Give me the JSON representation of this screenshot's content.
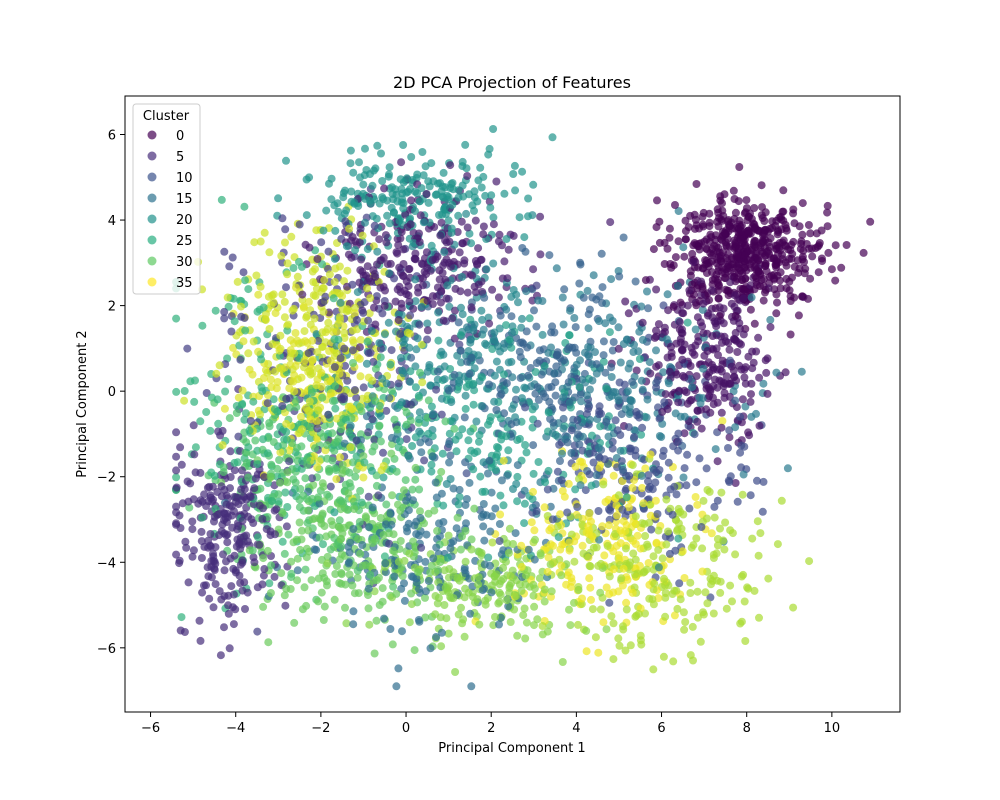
{
  "chart_data": {
    "type": "scatter",
    "title": "2D PCA Projection of Features",
    "xlabel": "Principal Component 1",
    "ylabel": "Principal Component 2",
    "xlim": [
      -6.6,
      11.6
    ],
    "ylim": [
      -7.5,
      6.9
    ],
    "xticks": [
      -6,
      -4,
      -2,
      0,
      2,
      4,
      6,
      8,
      10
    ],
    "yticks": [
      -6,
      -4,
      -2,
      0,
      2,
      4,
      6
    ],
    "grid": false,
    "marker_alpha": 0.7,
    "colormap": "viridis",
    "color_range": [
      0,
      39
    ],
    "legend": {
      "title": "Cluster",
      "placement": "top-left",
      "entries": [
        {
          "label": "0",
          "color": "#440154"
        },
        {
          "label": "5",
          "color": "#472d7b"
        },
        {
          "label": "10",
          "color": "#3b528b"
        },
        {
          "label": "15",
          "color": "#2c728e"
        },
        {
          "label": "20",
          "color": "#21918c"
        },
        {
          "label": "25",
          "color": "#28ae80"
        },
        {
          "label": "30",
          "color": "#5ec962"
        },
        {
          "label": "35",
          "color": "#fde725"
        }
      ]
    },
    "clusters": [
      {
        "cluster": 0,
        "center": [
          8.0,
          3.2
        ],
        "spread": [
          0.9,
          0.7
        ],
        "count": 520
      },
      {
        "cluster": 2,
        "center": [
          7.0,
          0.8
        ],
        "spread": [
          0.8,
          0.9
        ],
        "count": 260
      },
      {
        "cluster": 3,
        "center": [
          0.3,
          3.0
        ],
        "spread": [
          1.2,
          0.8
        ],
        "count": 260
      },
      {
        "cluster": 5,
        "center": [
          -4.2,
          -3.2
        ],
        "spread": [
          0.6,
          1.0
        ],
        "count": 240
      },
      {
        "cluster": 7,
        "center": [
          -1.5,
          0.5
        ],
        "spread": [
          1.4,
          1.8
        ],
        "count": 200
      },
      {
        "cluster": 9,
        "center": [
          5.5,
          -1.5
        ],
        "spread": [
          1.3,
          1.2
        ],
        "count": 200
      },
      {
        "cluster": 12,
        "center": [
          3.0,
          0.5
        ],
        "spread": [
          1.5,
          1.3
        ],
        "count": 200
      },
      {
        "cluster": 14,
        "center": [
          0.5,
          -3.5
        ],
        "spread": [
          1.5,
          1.2
        ],
        "count": 220
      },
      {
        "cluster": 16,
        "center": [
          5.0,
          0.0
        ],
        "spread": [
          1.4,
          1.4
        ],
        "count": 200
      },
      {
        "cluster": 18,
        "center": [
          1.0,
          1.0
        ],
        "spread": [
          1.4,
          1.3
        ],
        "count": 200
      },
      {
        "cluster": 20,
        "center": [
          0.3,
          4.5
        ],
        "spread": [
          1.2,
          0.6
        ],
        "count": 220
      },
      {
        "cluster": 22,
        "center": [
          2.0,
          -1.0
        ],
        "spread": [
          1.6,
          1.3
        ],
        "count": 200
      },
      {
        "cluster": 25,
        "center": [
          -3.0,
          -0.5
        ],
        "spread": [
          1.2,
          1.8
        ],
        "count": 200
      },
      {
        "cluster": 28,
        "center": [
          -2.0,
          -2.0
        ],
        "spread": [
          1.3,
          1.1
        ],
        "count": 260
      },
      {
        "cluster": 30,
        "center": [
          -1.2,
          -3.5
        ],
        "spread": [
          1.2,
          1.0
        ],
        "count": 240
      },
      {
        "cluster": 32,
        "center": [
          2.0,
          -4.6
        ],
        "spread": [
          1.2,
          0.6
        ],
        "count": 200
      },
      {
        "cluster": 34,
        "center": [
          6.0,
          -4.0
        ],
        "spread": [
          1.3,
          1.0
        ],
        "count": 220
      },
      {
        "cluster": 36,
        "center": [
          -2.0,
          1.5
        ],
        "spread": [
          1.0,
          1.2
        ],
        "count": 200
      },
      {
        "cluster": 37,
        "center": [
          -2.2,
          0.0
        ],
        "spread": [
          0.9,
          1.0
        ],
        "count": 200
      },
      {
        "cluster": 38,
        "center": [
          4.5,
          -3.5
        ],
        "spread": [
          1.0,
          1.0
        ],
        "count": 200
      }
    ]
  }
}
